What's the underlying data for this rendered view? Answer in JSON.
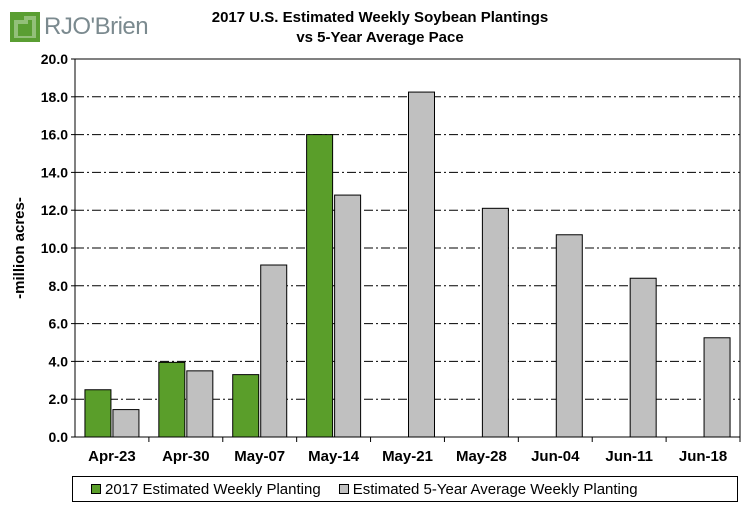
{
  "logo": {
    "text": "RJO'Brien",
    "mark_color": "#5a9e32"
  },
  "chart_data": {
    "type": "bar",
    "title": "2017 U.S. Estimated Weekly Soybean Plantings",
    "subtitle": "vs 5-Year Average Pace",
    "xlabel": "",
    "ylabel": "-million acres-",
    "ylim": [
      0,
      20
    ],
    "yticks": [
      "0.0",
      "2.0",
      "4.0",
      "6.0",
      "8.0",
      "10.0",
      "12.0",
      "14.0",
      "16.0",
      "18.0",
      "20.0"
    ],
    "grid": true,
    "legend_position": "bottom",
    "categories": [
      "Apr-23",
      "Apr-30",
      "May-07",
      "May-14",
      "May-21",
      "May-28",
      "Jun-04",
      "Jun-11",
      "Jun-18"
    ],
    "series": [
      {
        "name": "2017 Estimated Weekly Planting",
        "color": "#5a9e2a",
        "values": [
          2.5,
          3.95,
          3.3,
          16.0,
          null,
          null,
          null,
          null,
          null
        ]
      },
      {
        "name": "Estimated 5-Year Average Weekly Planting",
        "color": "#c0c0c0",
        "values": [
          1.45,
          3.5,
          9.1,
          12.8,
          18.25,
          12.1,
          10.7,
          8.4,
          5.25
        ]
      }
    ]
  }
}
